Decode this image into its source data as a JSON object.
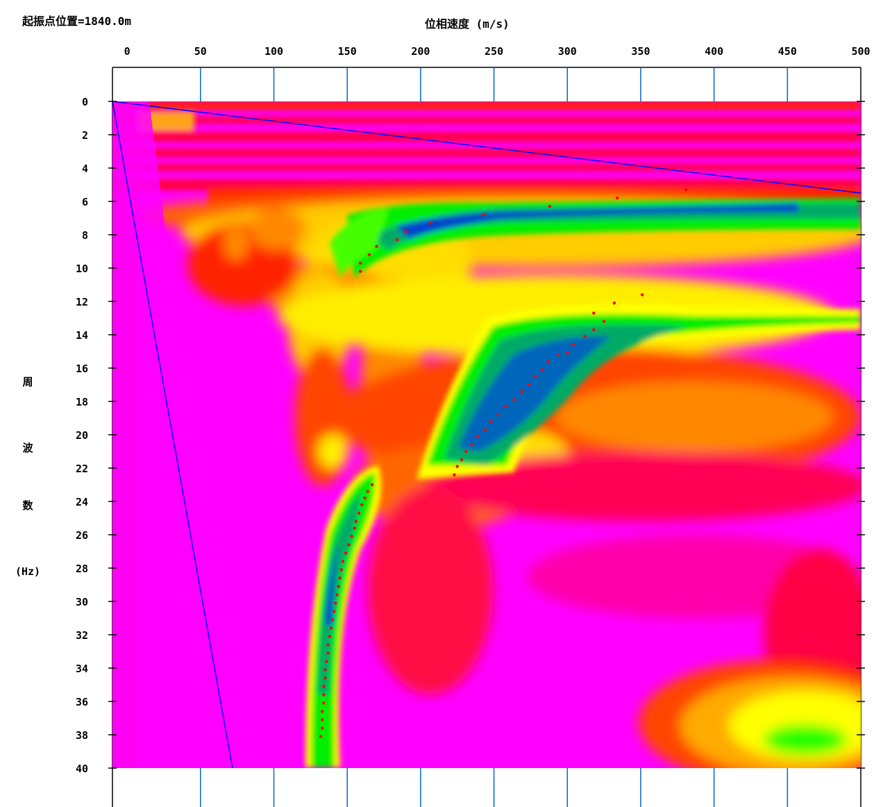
{
  "chart_data": {
    "type": "heatmap",
    "subtitle": "起振点位置=1840.0m",
    "xlabel": "位相速度 (m/s)",
    "ylabel_lines": [
      "周",
      "波",
      "数",
      "(Hz)"
    ],
    "xlim": [
      -10,
      500
    ],
    "ylim": [
      0,
      40
    ],
    "x_ticks": [
      0,
      50,
      100,
      150,
      200,
      250,
      300,
      350,
      400,
      450,
      500
    ],
    "y_ticks": [
      0,
      2,
      4,
      6,
      8,
      10,
      12,
      14,
      16,
      18,
      20,
      22,
      24,
      26,
      28,
      30,
      32,
      34,
      36,
      38,
      40
    ],
    "grid": "vertical tick lines at top and bottom",
    "colormap": [
      "#ff00ff",
      "#ff0066",
      "#ff0000",
      "#ff8800",
      "#ffff00",
      "#00ff00",
      "#00aa55",
      "#007799",
      "#0044cc"
    ],
    "colors": {
      "reference_line": "#0000ff",
      "picked_points": "#ff0000",
      "background": "#ffffff"
    },
    "picked_points": [
      {
        "x": 381,
        "y": 5.3
      },
      {
        "x": 334,
        "y": 5.8
      },
      {
        "x": 288,
        "y": 6.3
      },
      {
        "x": 243,
        "y": 6.8
      },
      {
        "x": 207,
        "y": 7.3
      },
      {
        "x": 190,
        "y": 7.8
      },
      {
        "x": 184,
        "y": 8.3
      },
      {
        "x": 170,
        "y": 8.7
      },
      {
        "x": 165,
        "y": 9.2
      },
      {
        "x": 159,
        "y": 9.7
      },
      {
        "x": 159,
        "y": 10.2
      },
      {
        "x": 351,
        "y": 11.6
      },
      {
        "x": 332,
        "y": 12.1
      },
      {
        "x": 318,
        "y": 12.7
      },
      {
        "x": 325,
        "y": 13.2
      },
      {
        "x": 318,
        "y": 13.7
      },
      {
        "x": 312,
        "y": 14.1
      },
      {
        "x": 304,
        "y": 14.6
      },
      {
        "x": 300,
        "y": 15.1
      },
      {
        "x": 294,
        "y": 15.2
      },
      {
        "x": 287,
        "y": 15.6
      },
      {
        "x": 283,
        "y": 16.1
      },
      {
        "x": 278,
        "y": 16.5
      },
      {
        "x": 274,
        "y": 17.0
      },
      {
        "x": 269,
        "y": 17.4
      },
      {
        "x": 264,
        "y": 17.9
      },
      {
        "x": 258,
        "y": 18.3
      },
      {
        "x": 253,
        "y": 18.8
      },
      {
        "x": 248,
        "y": 19.2
      },
      {
        "x": 244,
        "y": 19.7
      },
      {
        "x": 239,
        "y": 20.1
      },
      {
        "x": 235,
        "y": 20.6
      },
      {
        "x": 231,
        "y": 21.0
      },
      {
        "x": 228,
        "y": 21.5
      },
      {
        "x": 225,
        "y": 21.9
      },
      {
        "x": 223,
        "y": 22.4
      },
      {
        "x": 167,
        "y": 23.0
      },
      {
        "x": 164,
        "y": 23.4
      },
      {
        "x": 162,
        "y": 23.8
      },
      {
        "x": 160,
        "y": 24.2
      },
      {
        "x": 158,
        "y": 24.7
      },
      {
        "x": 156,
        "y": 25.2
      },
      {
        "x": 155,
        "y": 25.6
      },
      {
        "x": 153,
        "y": 26.1
      },
      {
        "x": 151,
        "y": 26.6
      },
      {
        "x": 149,
        "y": 27.1
      },
      {
        "x": 147,
        "y": 27.6
      },
      {
        "x": 146,
        "y": 28.1
      },
      {
        "x": 145,
        "y": 28.6
      },
      {
        "x": 144,
        "y": 29.1
      },
      {
        "x": 143,
        "y": 29.6
      },
      {
        "x": 142,
        "y": 30.1
      },
      {
        "x": 141,
        "y": 30.6
      },
      {
        "x": 140,
        "y": 31.1
      },
      {
        "x": 139,
        "y": 31.6
      },
      {
        "x": 138,
        "y": 32.1
      },
      {
        "x": 137,
        "y": 32.6
      },
      {
        "x": 137,
        "y": 33.1
      },
      {
        "x": 136,
        "y": 33.6
      },
      {
        "x": 135,
        "y": 34.1
      },
      {
        "x": 135,
        "y": 34.6
      },
      {
        "x": 134,
        "y": 35.1
      },
      {
        "x": 134,
        "y": 35.6
      },
      {
        "x": 134,
        "y": 36.1
      },
      {
        "x": 133,
        "y": 36.6
      },
      {
        "x": 133,
        "y": 37.1
      },
      {
        "x": 133,
        "y": 37.6
      },
      {
        "x": 132,
        "y": 38.1
      }
    ]
  }
}
